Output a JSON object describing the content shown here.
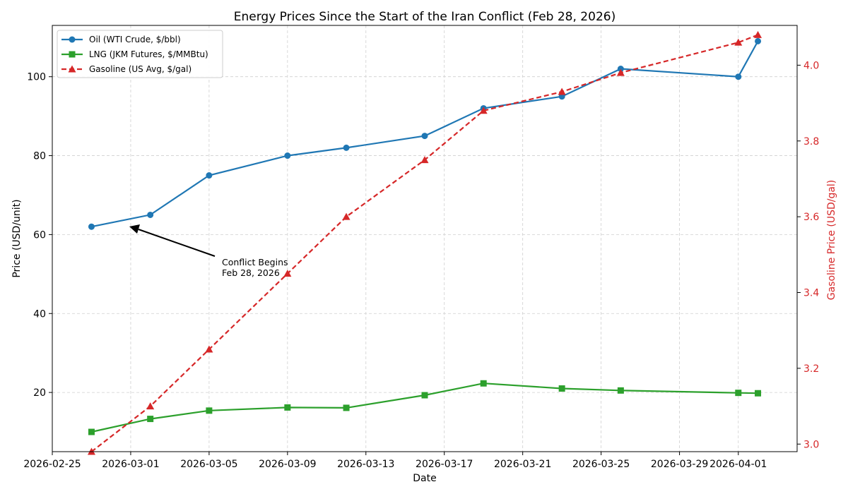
{
  "chart_data": {
    "type": "line",
    "title": "Energy Prices Since the Start of the Iran Conflict (Feb 28, 2026)",
    "xlabel": "Date",
    "ylabel": "Price (USD/unit)",
    "y2label": "Gasoline Price (USD/gal)",
    "x_dates": [
      "2026-02-27",
      "2026-03-02",
      "2026-03-05",
      "2026-03-09",
      "2026-03-12",
      "2026-03-16",
      "2026-03-19",
      "2026-03-23",
      "2026-03-26",
      "2026-04-01",
      "2026-04-02"
    ],
    "xlim": [
      "2026-02-25",
      "2026-04-04"
    ],
    "x_ticks": [
      "2026-02-25",
      "2026-03-01",
      "2026-03-05",
      "2026-03-09",
      "2026-03-13",
      "2026-03-17",
      "2026-03-21",
      "2026-03-25",
      "2026-03-29",
      "2026-04-01"
    ],
    "ylim": [
      5,
      113
    ],
    "y_ticks": [
      20,
      40,
      60,
      80,
      100
    ],
    "y2lim": [
      2.98,
      4.105
    ],
    "y2_ticks": [
      3.0,
      3.2,
      3.4,
      3.6,
      3.8,
      4.0
    ],
    "grid": true,
    "legend_position": "top-left",
    "series": [
      {
        "name": "Oil (WTI Crude, $/bbl)",
        "axis": "left",
        "color": "#1f77b4",
        "marker": "circle",
        "linestyle": "solid",
        "values": [
          62,
          65,
          75,
          80,
          82,
          85,
          92,
          95,
          102,
          100,
          109
        ]
      },
      {
        "name": "LNG (JKM Futures, $/MMBtu)",
        "axis": "left",
        "color": "#2ca02c",
        "marker": "square",
        "linestyle": "solid",
        "values": [
          10,
          13.3,
          15.4,
          16.2,
          16.1,
          19.3,
          22.3,
          21,
          20.5,
          19.9,
          19.8
        ]
      },
      {
        "name": "Gasoline (US Avg, $/gal)",
        "axis": "right",
        "color": "#d62728",
        "marker": "triangle",
        "linestyle": "dashed",
        "values": [
          2.98,
          3.1,
          3.25,
          3.45,
          3.6,
          3.75,
          3.88,
          3.93,
          3.98,
          4.06,
          4.08
        ]
      }
    ],
    "annotation": {
      "line1": "Conflict Begins",
      "line2": "Feb 28, 2026",
      "point_date": "2026-02-28",
      "point_value": 62.8
    }
  }
}
